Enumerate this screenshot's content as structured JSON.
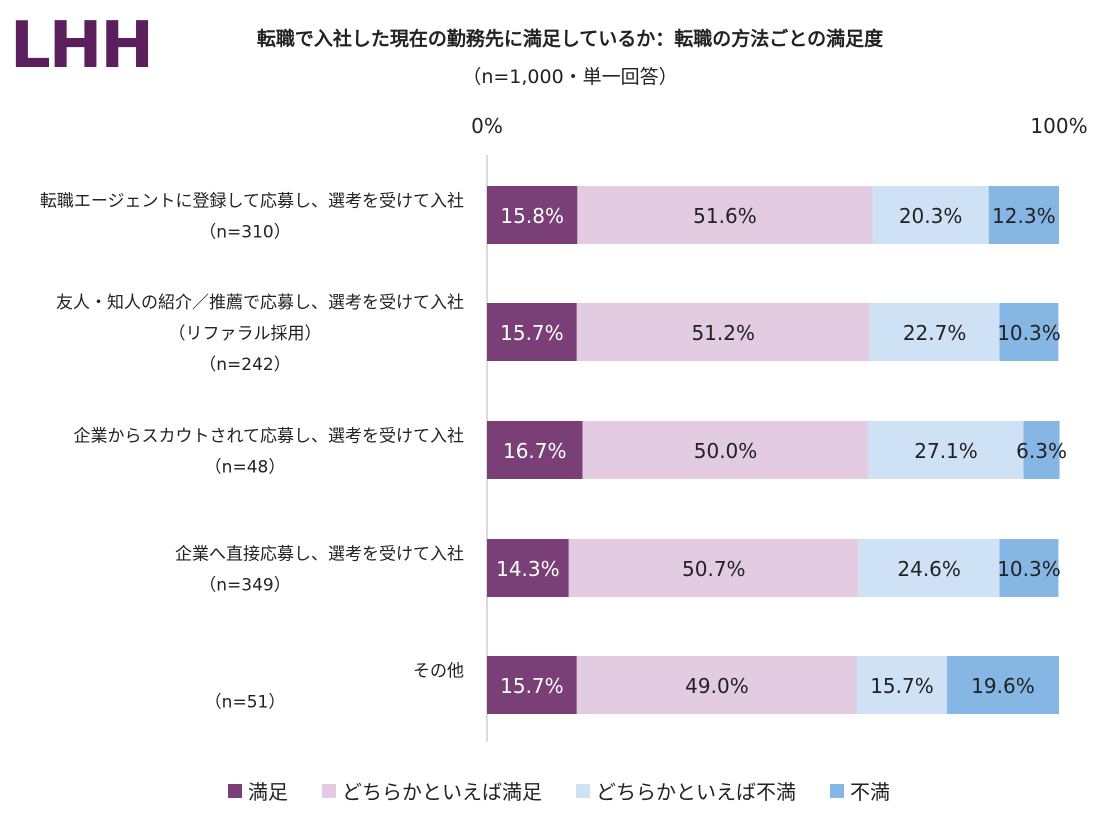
{
  "logo": "LHH",
  "colors": {
    "satisfied": "#7b3f78",
    "somewhat_satisfied": "#e3cbe2",
    "somewhat_dissatisfied": "#cfe2f5",
    "dissatisfied": "#86b7e4"
  },
  "chart_data": {
    "type": "bar",
    "orientation": "horizontal",
    "stacked": true,
    "title": "転職で入社した現在の勤務先に満足しているか：転職の方法ごとの満足度",
    "subtitle": "（n=1,000・単一回答）",
    "axis_min_label": "0%",
    "axis_max_label": "100%",
    "xlim": [
      0,
      100
    ],
    "legend_position": "bottom",
    "categories": [
      [
        "転職エージェントに登録して応募し、選考を受けて入社",
        "（n=310）"
      ],
      [
        "友人・知人の紹介／推薦で応募し、選考を受けて入社",
        "（リファラル採用）",
        "（n=242）"
      ],
      [
        "企業からスカウトされて応募し、選考を受けて入社",
        "（n=48）"
      ],
      [
        "企業へ直接応募し、選考を受けて入社",
        "（n=349）"
      ],
      [
        "その他",
        "（n=51）"
      ]
    ],
    "series": [
      {
        "name": "満足",
        "color_key": "satisfied",
        "label_color": "#ffffff",
        "values": [
          15.8,
          15.7,
          16.7,
          14.3,
          15.7
        ],
        "labels": [
          "15.8%",
          "15.7%",
          "16.7%",
          "14.3%",
          "15.7%"
        ]
      },
      {
        "name": "どちらかといえば満足",
        "color_key": "somewhat_satisfied",
        "label_color": "#222222",
        "values": [
          51.6,
          51.2,
          50.0,
          50.7,
          49.0
        ],
        "labels": [
          "51.6%",
          "51.2%",
          "50.0%",
          "50.7%",
          "49.0%"
        ]
      },
      {
        "name": "どちらかといえば不満",
        "color_key": "somewhat_dissatisfied",
        "label_color": "#222222",
        "values": [
          20.3,
          22.7,
          27.1,
          24.6,
          15.7
        ],
        "labels": [
          "20.3%",
          "22.7%",
          "27.1%",
          "24.6%",
          "15.7%"
        ]
      },
      {
        "name": "不満",
        "color_key": "dissatisfied",
        "label_color": "#222222",
        "values": [
          12.3,
          10.3,
          6.3,
          10.3,
          19.6
        ],
        "labels": [
          "12.3%",
          "10.3%",
          "6.3%",
          "10.3%",
          "19.6%"
        ]
      }
    ]
  }
}
